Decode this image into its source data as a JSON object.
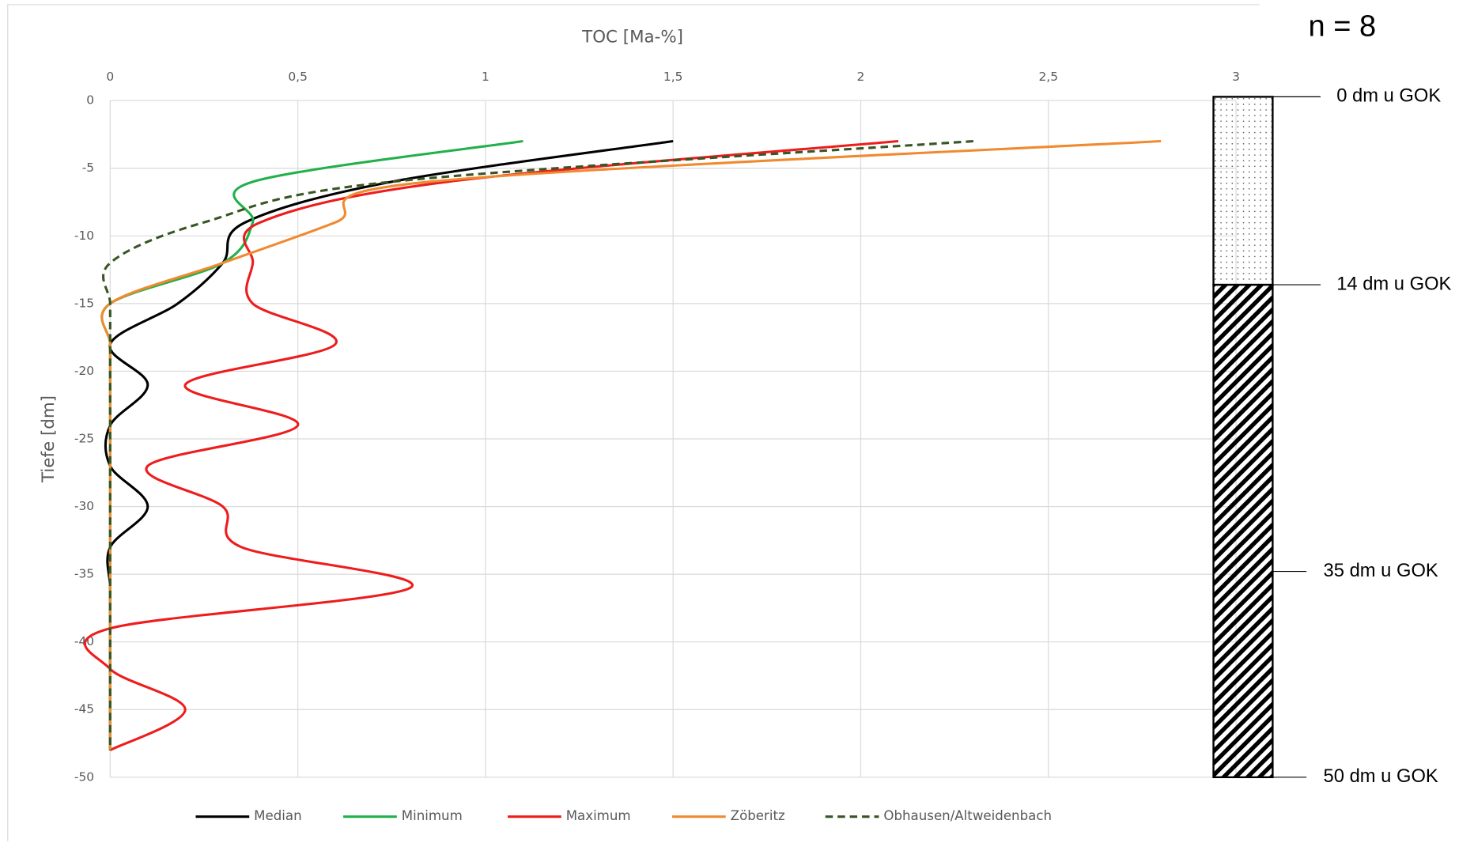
{
  "chart_data": {
    "type": "line",
    "title": "TOC [Ma-%]",
    "y_label": "Tiefe [dm]",
    "y": [
      -3,
      -6,
      -9,
      -12,
      -15,
      -18,
      -21,
      -24,
      -27,
      -30,
      -33,
      -36,
      -39,
      -42,
      -45,
      -48
    ],
    "series": [
      {
        "name": "Median",
        "color": "#000000",
        "dash": "solid",
        "values": [
          1.5,
          0.75,
          0.36,
          0.3,
          0.18,
          0,
          0.1,
          0,
          0,
          0.1,
          0,
          0,
          0,
          0,
          0,
          0
        ]
      },
      {
        "name": "Minimum",
        "color": "#22b04a",
        "dash": "solid",
        "values": [
          1.1,
          0.38,
          0.38,
          0.3,
          0,
          0,
          0,
          0,
          0,
          0,
          0,
          0,
          0,
          0,
          0,
          0
        ]
      },
      {
        "name": "Maximum",
        "color": "#ee1c1c",
        "dash": "solid",
        "values": [
          2.1,
          0.9,
          0.4,
          0.38,
          0.38,
          0.6,
          0.2,
          0.5,
          0.1,
          0.3,
          0.35,
          0.8,
          0,
          0,
          0.2,
          0
        ]
      },
      {
        "name": "Zöberitz",
        "color": "#f08a30",
        "dash": "solid",
        "values": [
          2.8,
          0.85,
          0.6,
          0.3,
          0,
          0,
          0,
          0,
          0,
          0,
          0,
          0,
          0,
          0,
          0,
          0
        ]
      },
      {
        "name": "Obhausen/Altweidenbach",
        "color": "#375623",
        "dash": "dashed",
        "values": [
          2.3,
          0.75,
          0.25,
          0,
          0,
          0,
          0,
          0,
          0,
          0,
          0,
          0,
          0,
          0,
          0,
          0
        ]
      }
    ],
    "xlim": [
      0,
      3
    ],
    "ylim": [
      -50,
      0
    ],
    "xticks": [
      0,
      {
        "value": 0.5,
        "label": "0,5"
      },
      1,
      {
        "value": 1.5,
        "label": "1,5"
      },
      2,
      {
        "value": 2.5,
        "label": "2,5"
      },
      3
    ],
    "yticks": [
      0,
      -5,
      -10,
      -15,
      -20,
      -25,
      -30,
      -35,
      -40,
      -45,
      -50
    ],
    "grid": true,
    "legend": "bottom"
  },
  "column": {
    "title": "n = 8",
    "labels": [
      "0 dm u GOK",
      "14 dm u GOK",
      "35 dm u GOK",
      "50 dm u GOK"
    ]
  }
}
